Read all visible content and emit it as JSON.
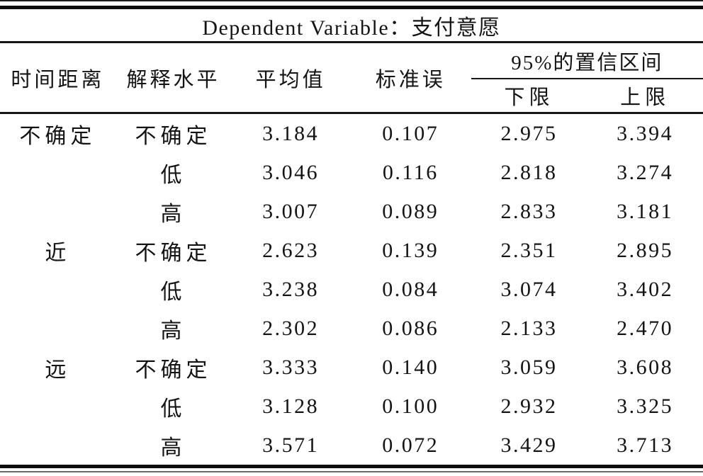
{
  "page": {
    "background": "#ffffff",
    "ink": "#141414",
    "rule_color": "#0d0d0d"
  },
  "table": {
    "title": "Dependent Variable：支付意愿",
    "col_headers": {
      "time_distance": "时间距离",
      "construal_level": "解释水平",
      "mean": "平均值",
      "std_error": "标准误",
      "ci": "95%的置信区间",
      "ci_lower": "下限",
      "ci_upper": "上限"
    },
    "rows": [
      {
        "time_distance": "不确定",
        "construal_level": "不确定",
        "mean": "3.184",
        "std_error": "0.107",
        "ci_lower": "2.975",
        "ci_upper": "3.394"
      },
      {
        "time_distance": "",
        "construal_level": "低",
        "mean": "3.046",
        "std_error": "0.116",
        "ci_lower": "2.818",
        "ci_upper": "3.274"
      },
      {
        "time_distance": "",
        "construal_level": "高",
        "mean": "3.007",
        "std_error": "0.089",
        "ci_lower": "2.833",
        "ci_upper": "3.181"
      },
      {
        "time_distance": "近",
        "construal_level": "不确定",
        "mean": "2.623",
        "std_error": "0.139",
        "ci_lower": "2.351",
        "ci_upper": "2.895"
      },
      {
        "time_distance": "",
        "construal_level": "低",
        "mean": "3.238",
        "std_error": "0.084",
        "ci_lower": "3.074",
        "ci_upper": "3.402"
      },
      {
        "time_distance": "",
        "construal_level": "高",
        "mean": "2.302",
        "std_error": "0.086",
        "ci_lower": "2.133",
        "ci_upper": "2.470"
      },
      {
        "time_distance": "远",
        "construal_level": "不确定",
        "mean": "3.333",
        "std_error": "0.140",
        "ci_lower": "3.059",
        "ci_upper": "3.608"
      },
      {
        "time_distance": "",
        "construal_level": "低",
        "mean": "3.128",
        "std_error": "0.100",
        "ci_lower": "2.932",
        "ci_upper": "3.325"
      },
      {
        "time_distance": "",
        "construal_level": "高",
        "mean": "3.571",
        "std_error": "0.072",
        "ci_lower": "3.429",
        "ci_upper": "3.713"
      }
    ]
  }
}
